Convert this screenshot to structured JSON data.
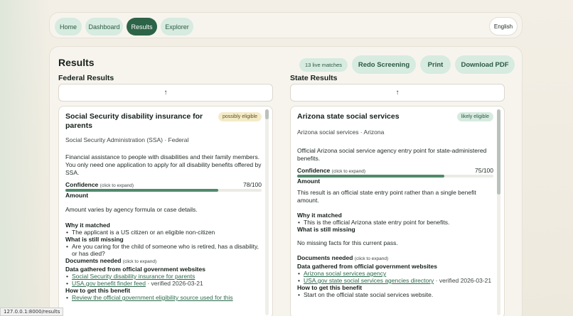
{
  "nav": {
    "items": [
      {
        "label": "Home",
        "active": false
      },
      {
        "label": "Dashboard",
        "active": false
      },
      {
        "label": "Results",
        "active": true
      },
      {
        "label": "Explorer",
        "active": false
      }
    ],
    "language": "English"
  },
  "page": {
    "title": "Results",
    "live_matches": "13 live matches",
    "actions": {
      "redo": "Redo Screening",
      "print": "Print",
      "download": "Download PDF"
    }
  },
  "federal": {
    "heading": "Federal Results",
    "sort_arrow": "↑",
    "card": {
      "title": "Social Security disability insurance for parents",
      "eligibility": "possibly eligible",
      "agency": "Social Security Administration (SSA) · Federal",
      "description": "Financial assistance to people with disabilities and their family members. You only need one application to apply for all disability benefits offered by SSA.",
      "confidence_label": "Confidence",
      "confidence_hint": "(click to expand)",
      "confidence_value": "78/100",
      "confidence_fraction": 0.78,
      "amount_label": "Amount",
      "amount_text": "Amount varies by agency formula or case details.",
      "why_label": "Why it matched",
      "why_items": [
        "The applicant is a US citizen or an eligible non-citizen"
      ],
      "missing_label": "What is still missing",
      "missing_items": [
        "Are you caring for the child of someone who is retired, has a disability, or has died?"
      ],
      "docs_label": "Documents needed",
      "docs_hint": "(click to expand)",
      "sources_label": "Data gathered from official government websites",
      "sources": [
        {
          "link": "Social Security disability insurance for parents",
          "note": ""
        },
        {
          "link": "USA.gov benefit finder feed",
          "note": " · verified 2026-03-21"
        }
      ],
      "how_label": "How to get this benefit",
      "how_items": [
        "Review the official government eligibility source used for this"
      ]
    }
  },
  "state": {
    "heading": "State Results",
    "sort_arrow": "↑",
    "card": {
      "title": "Arizona state social services",
      "eligibility": "likely eligible",
      "agency": "Arizona social services · Arizona",
      "description": "Official Arizona social service agency entry point for state-administered benefits.",
      "confidence_label": "Confidence",
      "confidence_hint": "(click to expand)",
      "confidence_value": "75/100",
      "confidence_fraction": 0.75,
      "amount_label": "Amount",
      "amount_text": "This result is an official state entry point rather than a single benefit amount.",
      "why_label": "Why it matched",
      "why_items": [
        "This is the official Arizona state entry point for benefits."
      ],
      "missing_label": "What is still missing",
      "missing_text": "No missing facts for this current pass.",
      "docs_label": "Documents needed",
      "docs_hint": "(click to expand)",
      "sources_label": "Data gathered from official government websites",
      "sources": [
        {
          "link": "Arizona social services agency",
          "note": ""
        },
        {
          "link": "USA.gov state social services agencies directory",
          "note": " · verified 2026-03-21"
        }
      ],
      "how_label": "How to get this benefit",
      "how_items": [
        "Start on the official state social services website."
      ]
    }
  },
  "status_url": "127.0.0.1:8000/results"
}
